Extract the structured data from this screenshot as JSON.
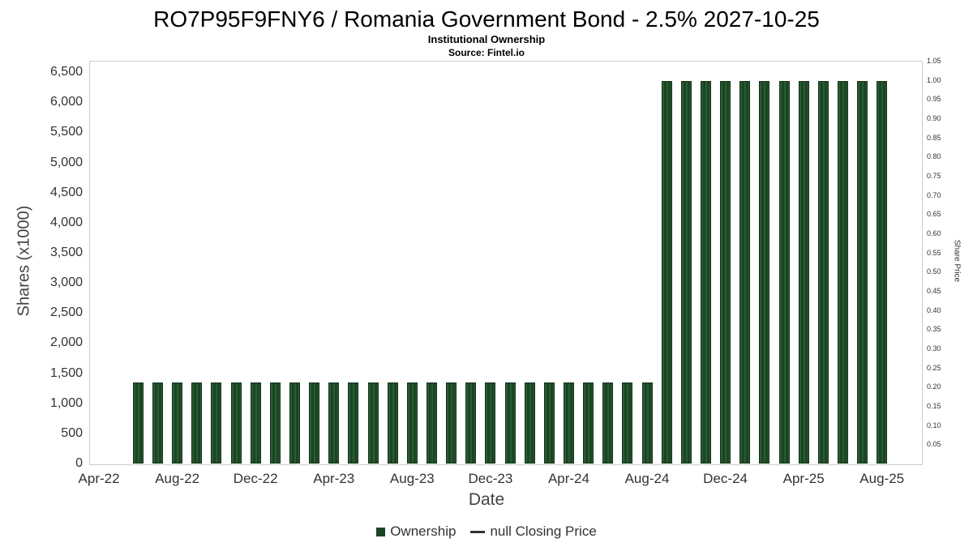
{
  "header": {
    "title": "RO7P95F9FNY6 / Romania Government Bond - 2.5% 2027-10-25",
    "subtitle": "Institutional Ownership",
    "source": "Source: Fintel.io"
  },
  "legend": {
    "ownership_label": "Ownership",
    "closing_price_label": "null Closing Price"
  },
  "colors": {
    "bar_fill": "#1b4522",
    "bar_stripe": "#2a5c33",
    "bar_border": "#123018",
    "legend_line": "#333333",
    "plot_border": "#cccccc",
    "axis_text": "#333333"
  },
  "chart_data": {
    "type": "bar",
    "title": "RO7P95F9FNY6 / Romania Government Bond - 2.5% 2027-10-25",
    "subtitle": "Institutional Ownership",
    "source": "Source: Fintel.io",
    "xlabel": "Date",
    "ylabel_left": "Shares (x1000)",
    "ylabel_right": "Share Price",
    "legend_position": "bottom",
    "grid": false,
    "ylim_left": [
      0,
      6690
    ],
    "ylim_right": [
      0,
      1.05
    ],
    "x_domain_months_from_apr22": [
      -0.5,
      42
    ],
    "x_tick_labels": [
      "Apr-22",
      "Aug-22",
      "Dec-22",
      "Apr-23",
      "Aug-23",
      "Dec-23",
      "Apr-24",
      "Aug-24",
      "Dec-24",
      "Apr-25",
      "Aug-25"
    ],
    "y_left_ticks": [
      {
        "value": 0,
        "label": "0"
      },
      {
        "value": 500,
        "label": "500"
      },
      {
        "value": 1000,
        "label": "1,000"
      },
      {
        "value": 1500,
        "label": "1,500"
      },
      {
        "value": 2000,
        "label": "2,000"
      },
      {
        "value": 2500,
        "label": "2,500"
      },
      {
        "value": 3000,
        "label": "3,000"
      },
      {
        "value": 3500,
        "label": "3,500"
      },
      {
        "value": 4000,
        "label": "4,000"
      },
      {
        "value": 4500,
        "label": "4,500"
      },
      {
        "value": 5000,
        "label": "5,000"
      },
      {
        "value": 5500,
        "label": "5,500"
      },
      {
        "value": 6000,
        "label": "6,000"
      },
      {
        "value": 6500,
        "label": "6,500"
      }
    ],
    "y_right_ticks": [
      {
        "value": 0.05,
        "label": "0.05"
      },
      {
        "value": 0.1,
        "label": "0.10"
      },
      {
        "value": 0.15,
        "label": "0.15"
      },
      {
        "value": 0.2,
        "label": "0.20"
      },
      {
        "value": 0.25,
        "label": "0.25"
      },
      {
        "value": 0.3,
        "label": "0.30"
      },
      {
        "value": 0.35,
        "label": "0.35"
      },
      {
        "value": 0.4,
        "label": "0.40"
      },
      {
        "value": 0.45,
        "label": "0.45"
      },
      {
        "value": 0.5,
        "label": "0.50"
      },
      {
        "value": 0.55,
        "label": "0.55"
      },
      {
        "value": 0.6,
        "label": "0.60"
      },
      {
        "value": 0.65,
        "label": "0.65"
      },
      {
        "value": 0.7,
        "label": "0.70"
      },
      {
        "value": 0.75,
        "label": "0.75"
      },
      {
        "value": 0.8,
        "label": "0.80"
      },
      {
        "value": 0.85,
        "label": "0.85"
      },
      {
        "value": 0.9,
        "label": "0.90"
      },
      {
        "value": 0.95,
        "label": "0.95"
      },
      {
        "value": 1.0,
        "label": "1.00"
      },
      {
        "value": 1.05,
        "label": "1.05"
      }
    ],
    "series": [
      {
        "name": "Ownership",
        "type": "bar",
        "unit": "shares_x1000",
        "points": [
          {
            "date": "Jun-22",
            "value": 1350
          },
          {
            "date": "Jul-22",
            "value": 1350
          },
          {
            "date": "Aug-22",
            "value": 1350
          },
          {
            "date": "Sep-22",
            "value": 1350
          },
          {
            "date": "Oct-22",
            "value": 1350
          },
          {
            "date": "Nov-22",
            "value": 1350
          },
          {
            "date": "Dec-22",
            "value": 1350
          },
          {
            "date": "Jan-23",
            "value": 1350
          },
          {
            "date": "Feb-23",
            "value": 1350
          },
          {
            "date": "Mar-23",
            "value": 1350
          },
          {
            "date": "Apr-23",
            "value": 1350
          },
          {
            "date": "May-23",
            "value": 1350
          },
          {
            "date": "Jun-23",
            "value": 1350
          },
          {
            "date": "Jul-23",
            "value": 1350
          },
          {
            "date": "Aug-23",
            "value": 1350
          },
          {
            "date": "Sep-23",
            "value": 1350
          },
          {
            "date": "Oct-23",
            "value": 1350
          },
          {
            "date": "Nov-23",
            "value": 1350
          },
          {
            "date": "Dec-23",
            "value": 1350
          },
          {
            "date": "Jan-24",
            "value": 1350
          },
          {
            "date": "Feb-24",
            "value": 1350
          },
          {
            "date": "Mar-24",
            "value": 1350
          },
          {
            "date": "Apr-24",
            "value": 1350
          },
          {
            "date": "May-24",
            "value": 1350
          },
          {
            "date": "Jun-24",
            "value": 1350
          },
          {
            "date": "Jul-24",
            "value": 1350
          },
          {
            "date": "Aug-24",
            "value": 1350
          },
          {
            "date": "Sep-24",
            "value": 6350
          },
          {
            "date": "Oct-24",
            "value": 6350
          },
          {
            "date": "Nov-24",
            "value": 6350
          },
          {
            "date": "Dec-24",
            "value": 6350
          },
          {
            "date": "Jan-25",
            "value": 6350
          },
          {
            "date": "Feb-25",
            "value": 6350
          },
          {
            "date": "Mar-25",
            "value": 6350
          },
          {
            "date": "Apr-25",
            "value": 6350
          },
          {
            "date": "May-25",
            "value": 6350
          },
          {
            "date": "Jun-25",
            "value": 6350
          },
          {
            "date": "Jul-25",
            "value": 6350
          },
          {
            "date": "Aug-25",
            "value": 6350
          }
        ]
      },
      {
        "name": "null Closing Price",
        "type": "line",
        "points": []
      }
    ]
  }
}
